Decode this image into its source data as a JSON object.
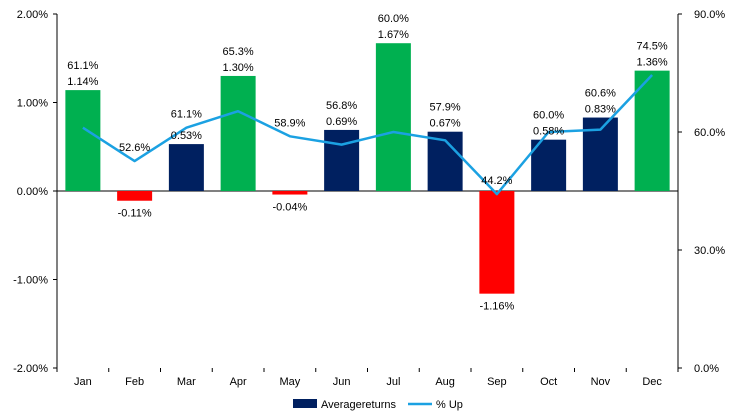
{
  "chart_data": {
    "type": "bar",
    "categories": [
      "Jan",
      "Feb",
      "Mar",
      "Apr",
      "May",
      "Jun",
      "Jul",
      "Aug",
      "Sep",
      "Oct",
      "Nov",
      "Dec"
    ],
    "series": [
      {
        "name": "Averagereturns",
        "type": "bar",
        "axis": "left",
        "values": [
          1.14,
          -0.11,
          0.53,
          1.3,
          -0.04,
          0.69,
          1.67,
          0.67,
          -1.16,
          0.58,
          0.83,
          1.36
        ],
        "labels": [
          "1.14%",
          "-0.11%",
          "0.53%",
          "1.30%",
          "-0.04%",
          "0.69%",
          "1.67%",
          "0.67%",
          "-1.16%",
          "0.58%",
          "0.83%",
          "1.36%"
        ],
        "bar_colors": [
          "#00B050",
          "#FF0000",
          "#002060",
          "#00B050",
          "#FF0000",
          "#002060",
          "#00B050",
          "#002060",
          "#FF0000",
          "#002060",
          "#002060",
          "#00B050"
        ],
        "legend_color": "#002060"
      },
      {
        "name": "% Up",
        "type": "line",
        "axis": "right",
        "values": [
          61.1,
          52.6,
          61.1,
          65.3,
          58.9,
          56.8,
          60.0,
          57.9,
          44.2,
          60.0,
          60.6,
          74.5
        ],
        "labels": [
          "61.1%",
          "52.6%",
          "61.1%",
          "65.3%",
          "58.9%",
          "56.8%",
          "60.0%",
          "57.9%",
          "44.2%",
          "60.0%",
          "60.6%",
          "74.5%"
        ],
        "color": "#1BA1E2"
      }
    ],
    "left_axis": {
      "ylim": [
        -2,
        2
      ],
      "ticks": [
        2,
        1,
        0,
        -1,
        -2
      ],
      "tick_labels": [
        "2.00%",
        "1.00%",
        "0.00%",
        "-1.00%",
        "-2.00%"
      ]
    },
    "right_axis": {
      "ylim": [
        0,
        90
      ],
      "ticks": [
        90,
        60,
        30,
        0
      ],
      "tick_labels": [
        "90.0%",
        "60.0%",
        "30.0%",
        "0.0%"
      ]
    },
    "legend": {
      "placement": "bottom",
      "entries": [
        "Averagereturns",
        "% Up"
      ]
    },
    "grid": false,
    "title": "",
    "xlabel": "",
    "ylabel": ""
  }
}
